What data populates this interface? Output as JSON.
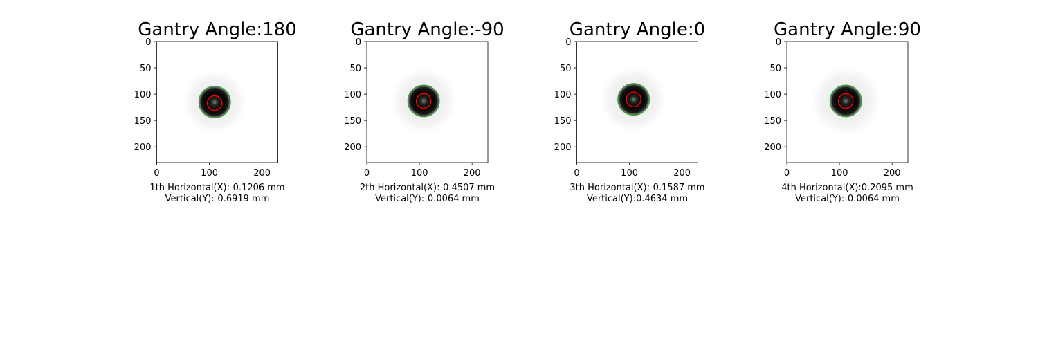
{
  "chart_data": [
    {
      "type": "heatmap",
      "title": "Gantry Angle:180",
      "xlabel_lines": [
        "1th Horizontal(X):-0.1206 mm",
        "Vertical(Y):-0.6919 mm"
      ],
      "xticks": [
        0,
        100,
        200
      ],
      "yticks": [
        0,
        50,
        100,
        150,
        200
      ],
      "xlim": [
        0,
        230
      ],
      "ylim": [
        230,
        0
      ],
      "ball_center": [
        110,
        117
      ],
      "field_center": [
        110,
        115
      ],
      "red_circle_radius": 14,
      "green_circle_radius": 30,
      "blob_radius": 30,
      "halo_radius": 60
    },
    {
      "type": "heatmap",
      "title": "Gantry Angle:-90",
      "xlabel_lines": [
        "2th Horizontal(X):-0.4507 mm",
        "Vertical(Y):-0.0064 mm"
      ],
      "xticks": [
        0,
        100,
        200
      ],
      "yticks": [
        0,
        50,
        100,
        150,
        200
      ],
      "xlim": [
        0,
        230
      ],
      "ylim": [
        230,
        0
      ],
      "ball_center": [
        108,
        113
      ],
      "field_center": [
        108,
        113
      ],
      "red_circle_radius": 14,
      "green_circle_radius": 30,
      "blob_radius": 30,
      "halo_radius": 62
    },
    {
      "type": "heatmap",
      "title": "Gantry Angle:0",
      "xlabel_lines": [
        "3th Horizontal(X):-0.1587 mm",
        "Vertical(Y):0.4634 mm"
      ],
      "xticks": [
        0,
        100,
        200
      ],
      "yticks": [
        0,
        50,
        100,
        150,
        200
      ],
      "xlim": [
        0,
        230
      ],
      "ylim": [
        230,
        0
      ],
      "ball_center": [
        108,
        110
      ],
      "field_center": [
        108,
        110
      ],
      "red_circle_radius": 14,
      "green_circle_radius": 30,
      "blob_radius": 30,
      "halo_radius": 62
    },
    {
      "type": "heatmap",
      "title": "Gantry Angle:90",
      "xlabel_lines": [
        "4th Horizontal(X):0.2095 mm",
        "Vertical(Y):-0.0064 mm"
      ],
      "xticks": [
        0,
        100,
        200
      ],
      "yticks": [
        0,
        50,
        100,
        150,
        200
      ],
      "xlim": [
        0,
        230
      ],
      "ylim": [
        230,
        0
      ],
      "ball_center": [
        112,
        113
      ],
      "field_center": [
        112,
        113
      ],
      "red_circle_radius": 14,
      "green_circle_radius": 30,
      "blob_radius": 30,
      "halo_radius": 65
    }
  ],
  "colors": {
    "red_circle": "#ff0000",
    "green_circle": "#2ca02c",
    "blob_core": "#000000",
    "halo": "#f2f2f2"
  }
}
